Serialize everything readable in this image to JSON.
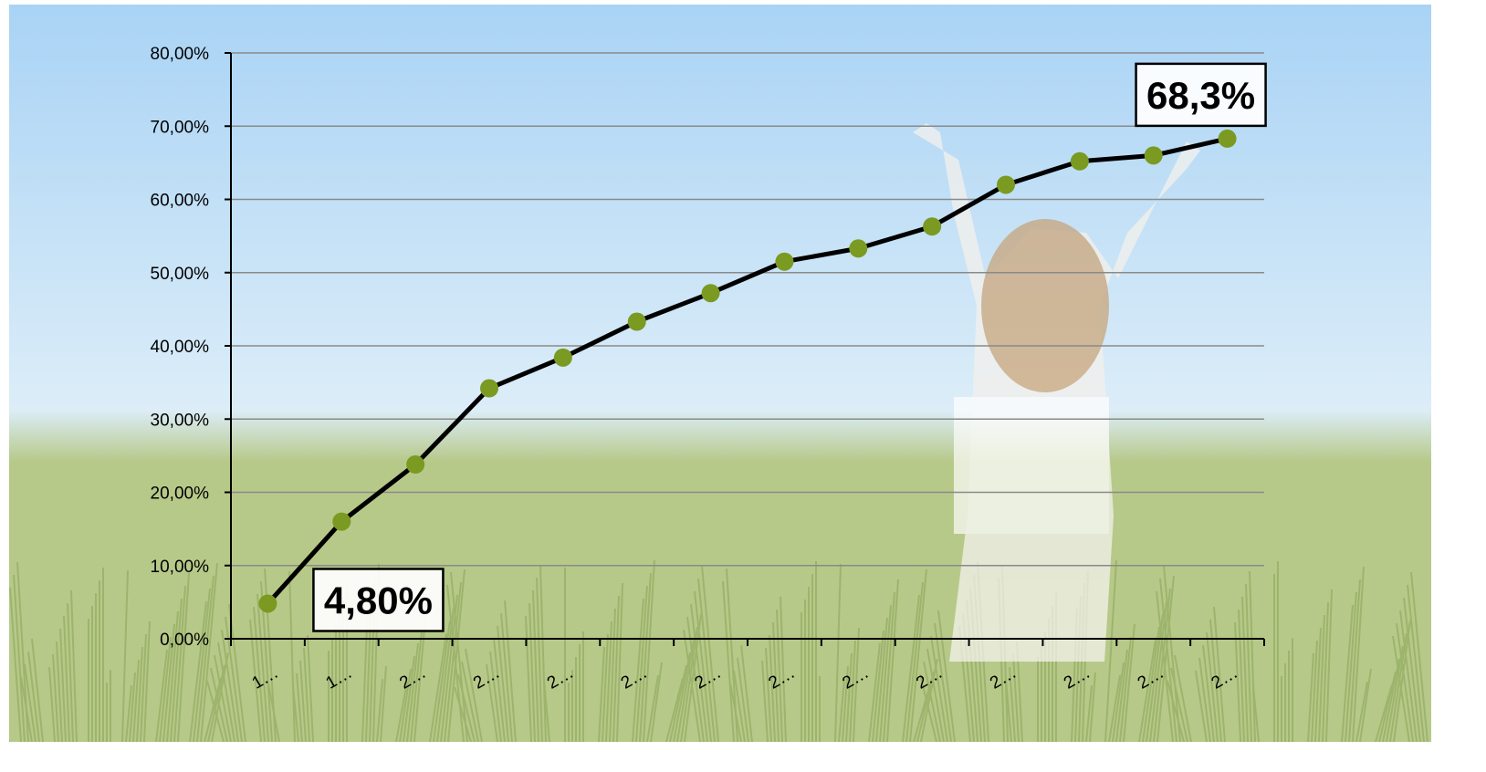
{
  "chart_data": {
    "type": "line",
    "title": "",
    "xlabel": "",
    "ylabel": "",
    "categories": [
      "1…",
      "1…",
      "2…",
      "2…",
      "2…",
      "2…",
      "2…",
      "2…",
      "2…",
      "2…",
      "2…",
      "2…",
      "2…",
      "2…"
    ],
    "series": [
      {
        "values": [
          4.8,
          16.0,
          23.8,
          34.2,
          38.4,
          43.3,
          47.2,
          51.5,
          53.3,
          56.3,
          62.0,
          65.2,
          66.0,
          68.3
        ]
      }
    ],
    "ylim": [
      0,
      80
    ],
    "yticks": [
      "0,00%",
      "10,00%",
      "20,00%",
      "30,00%",
      "40,00%",
      "50,00%",
      "60,00%",
      "70,00%",
      "80,00%"
    ],
    "grid": true,
    "legend": "none",
    "annotations": [
      {
        "text": "4,80%",
        "point_index": 0
      },
      {
        "text": "68,3%",
        "point_index": 13
      }
    ],
    "colors": {
      "line": "#000000",
      "marker": "#7a9a22",
      "grid": "#8a8a8a",
      "sky_top": "#a9d3f5",
      "sky_bottom": "#dcedf8",
      "grass": "#b7c989"
    }
  }
}
